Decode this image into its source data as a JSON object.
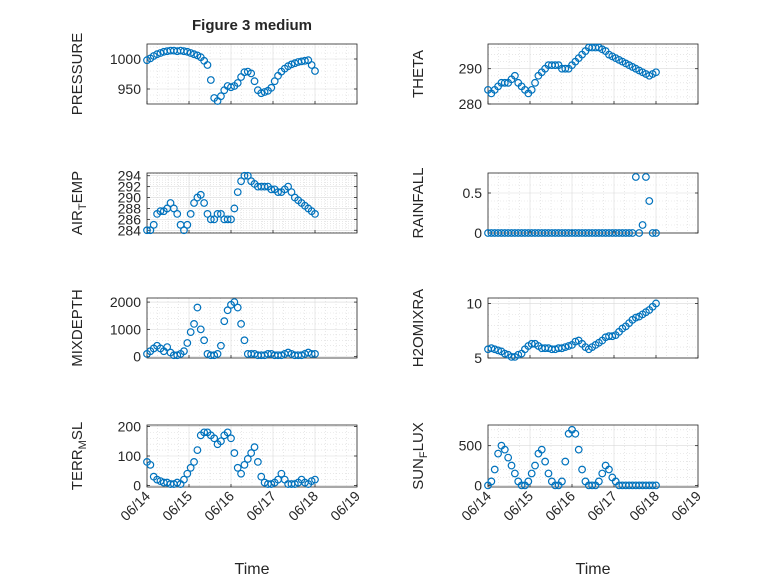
{
  "figure": {
    "title": "Figure 3 medium",
    "xlabel": "Time"
  },
  "colors": {
    "marker": "#0072BD",
    "axis": "#262626",
    "grid": "#d9d9d9",
    "background": "#ffffff"
  },
  "chart_data": [
    {
      "type": "scatter",
      "ylabel": "PRESSURE",
      "xlim": [
        "06/14",
        "06/19"
      ],
      "ylim": [
        925,
        1025
      ],
      "yticks": [
        950,
        1000
      ],
      "x_tick_labels": [],
      "grid": true,
      "marker": "open-circle",
      "series": [
        {
          "name": "",
          "x": [
            14.0,
            14.08,
            14.16,
            14.24,
            14.32,
            14.4,
            14.48,
            14.56,
            14.64,
            14.72,
            14.8,
            14.88,
            14.96,
            15.04,
            15.12,
            15.2,
            15.28,
            15.36,
            15.44,
            15.52,
            15.6,
            15.68,
            15.76,
            15.84,
            15.92,
            16.0,
            16.08,
            16.16,
            16.24,
            16.32,
            16.4,
            16.48,
            16.56,
            16.64,
            16.72,
            16.8,
            16.88,
            16.96,
            17.04,
            17.12,
            17.2,
            17.28,
            17.36,
            17.44,
            17.52,
            17.6,
            17.68,
            17.76,
            17.84,
            17.92,
            18.0
          ],
          "y": [
            998,
            1001,
            1005,
            1008,
            1010,
            1012,
            1013,
            1014,
            1014,
            1013,
            1014,
            1013,
            1012,
            1010,
            1008,
            1006,
            1003,
            997,
            990,
            965,
            935,
            930,
            938,
            948,
            955,
            953,
            955,
            960,
            970,
            978,
            979,
            976,
            963,
            948,
            943,
            945,
            947,
            952,
            963,
            972,
            979,
            984,
            988,
            991,
            993,
            995,
            996,
            997,
            998,
            990,
            980
          ]
        }
      ]
    },
    {
      "type": "scatter",
      "ylabel": "THETA",
      "xlim": [
        "06/14",
        "06/19"
      ],
      "ylim": [
        280,
        297
      ],
      "yticks": [
        280,
        290
      ],
      "x_tick_labels": [],
      "grid": true,
      "marker": "open-circle",
      "series": [
        {
          "name": "",
          "x": [
            14.0,
            14.08,
            14.16,
            14.24,
            14.32,
            14.4,
            14.48,
            14.56,
            14.64,
            14.72,
            14.8,
            14.88,
            14.96,
            15.04,
            15.12,
            15.2,
            15.28,
            15.36,
            15.44,
            15.52,
            15.6,
            15.68,
            15.76,
            15.84,
            15.92,
            16.0,
            16.08,
            16.16,
            16.24,
            16.32,
            16.4,
            16.48,
            16.56,
            16.64,
            16.72,
            16.8,
            16.88,
            16.96,
            17.04,
            17.12,
            17.2,
            17.28,
            17.36,
            17.44,
            17.52,
            17.6,
            17.68,
            17.76,
            17.84,
            17.92,
            18.0
          ],
          "y": [
            284,
            283,
            284,
            285,
            286,
            286,
            286,
            287,
            288,
            286,
            285,
            284,
            283,
            284,
            286,
            288,
            289,
            290,
            291,
            291,
            291,
            291,
            290,
            290,
            290,
            291,
            292,
            293,
            294,
            295,
            296,
            296,
            296,
            296,
            295.5,
            295,
            294,
            293.5,
            293,
            292.5,
            292,
            291.5,
            291,
            290.5,
            290,
            289.5,
            289,
            288.5,
            288,
            288.5,
            289
          ]
        }
      ]
    },
    {
      "type": "scatter",
      "ylabel": "AIR_TEMP",
      "xlim": [
        "06/14",
        "06/19"
      ],
      "ylim": [
        283.5,
        294.5
      ],
      "yticks": [
        284,
        286,
        288,
        290,
        292,
        294
      ],
      "x_tick_labels": [],
      "grid": true,
      "marker": "open-circle",
      "series": [
        {
          "name": "",
          "x": [
            14.0,
            14.08,
            14.16,
            14.24,
            14.32,
            14.4,
            14.48,
            14.56,
            14.64,
            14.72,
            14.8,
            14.88,
            14.96,
            15.04,
            15.12,
            15.2,
            15.28,
            15.36,
            15.44,
            15.52,
            15.6,
            15.68,
            15.76,
            15.84,
            15.92,
            16.0,
            16.08,
            16.16,
            16.24,
            16.32,
            16.4,
            16.48,
            16.56,
            16.64,
            16.72,
            16.8,
            16.88,
            16.96,
            17.04,
            17.12,
            17.2,
            17.28,
            17.36,
            17.44,
            17.52,
            17.6,
            17.68,
            17.76,
            17.84,
            17.92,
            18.0
          ],
          "y": [
            284,
            284,
            285,
            287,
            287.5,
            287.5,
            288,
            289,
            288,
            287,
            285,
            284,
            285,
            287,
            289,
            290,
            290.5,
            289,
            287,
            286,
            286,
            287,
            287,
            286,
            286,
            286,
            288,
            291,
            293,
            294,
            294,
            293,
            292.5,
            292,
            292,
            292,
            292,
            291.5,
            291.5,
            291,
            291,
            291.5,
            292,
            291,
            290,
            289.5,
            289,
            288.5,
            288,
            287.5,
            287
          ]
        }
      ]
    },
    {
      "type": "scatter",
      "ylabel": "RAINFALL",
      "xlim": [
        "06/14",
        "06/19"
      ],
      "ylim": [
        0,
        0.75
      ],
      "yticks": [
        0,
        0.5
      ],
      "x_tick_labels": [],
      "grid": true,
      "marker": "open-circle",
      "series": [
        {
          "name": "",
          "x": [
            14.0,
            14.08,
            14.16,
            14.24,
            14.32,
            14.4,
            14.48,
            14.56,
            14.64,
            14.72,
            14.8,
            14.88,
            14.96,
            15.04,
            15.12,
            15.2,
            15.28,
            15.36,
            15.44,
            15.52,
            15.6,
            15.68,
            15.76,
            15.84,
            15.92,
            16.0,
            16.08,
            16.16,
            16.24,
            16.32,
            16.4,
            16.48,
            16.56,
            16.64,
            16.72,
            16.8,
            16.88,
            16.96,
            17.04,
            17.12,
            17.2,
            17.28,
            17.36,
            17.44,
            17.52,
            17.6,
            17.68,
            17.76,
            17.84,
            17.92,
            18.0
          ],
          "y": [
            0,
            0,
            0,
            0,
            0,
            0,
            0,
            0,
            0,
            0,
            0,
            0,
            0,
            0,
            0,
            0,
            0,
            0,
            0,
            0,
            0,
            0,
            0,
            0,
            0,
            0,
            0,
            0,
            0,
            0,
            0,
            0,
            0,
            0,
            0,
            0,
            0,
            0,
            0,
            0,
            0,
            0,
            0,
            0,
            0.7,
            0,
            0.1,
            0.7,
            0.4,
            0,
            0
          ]
        }
      ]
    },
    {
      "type": "scatter",
      "ylabel": "MIXDEPTH",
      "xlim": [
        "06/14",
        "06/19"
      ],
      "ylim": [
        -50,
        2150
      ],
      "yticks": [
        0,
        1000,
        2000
      ],
      "x_tick_labels": [],
      "grid": true,
      "marker": "open-circle",
      "series": [
        {
          "name": "",
          "x": [
            14.0,
            14.08,
            14.16,
            14.24,
            14.32,
            14.4,
            14.48,
            14.56,
            14.64,
            14.72,
            14.8,
            14.88,
            14.96,
            15.04,
            15.12,
            15.2,
            15.28,
            15.36,
            15.44,
            15.52,
            15.6,
            15.68,
            15.76,
            15.84,
            15.92,
            16.0,
            16.08,
            16.16,
            16.24,
            16.32,
            16.4,
            16.48,
            16.56,
            16.64,
            16.72,
            16.8,
            16.88,
            16.96,
            17.04,
            17.12,
            17.2,
            17.28,
            17.36,
            17.44,
            17.52,
            17.6,
            17.68,
            17.76,
            17.84,
            17.92,
            18.0
          ],
          "y": [
            100,
            200,
            300,
            400,
            300,
            200,
            350,
            150,
            50,
            50,
            100,
            200,
            500,
            900,
            1200,
            1800,
            1000,
            600,
            100,
            50,
            50,
            100,
            400,
            1300,
            1700,
            1900,
            2000,
            1800,
            1200,
            600,
            100,
            100,
            100,
            50,
            50,
            50,
            100,
            100,
            50,
            50,
            50,
            100,
            150,
            100,
            50,
            50,
            50,
            100,
            150,
            100,
            100
          ]
        }
      ]
    },
    {
      "type": "scatter",
      "ylabel": "H2OMIXRA",
      "xlim": [
        "06/14",
        "06/19"
      ],
      "ylim": [
        5,
        10.5
      ],
      "yticks": [
        5,
        10
      ],
      "x_tick_labels": [],
      "grid": true,
      "marker": "open-circle",
      "series": [
        {
          "name": "",
          "x": [
            14.0,
            14.08,
            14.16,
            14.24,
            14.32,
            14.4,
            14.48,
            14.56,
            14.64,
            14.72,
            14.8,
            14.88,
            14.96,
            15.04,
            15.12,
            15.2,
            15.28,
            15.36,
            15.44,
            15.52,
            15.6,
            15.68,
            15.76,
            15.84,
            15.92,
            16.0,
            16.08,
            16.16,
            16.24,
            16.32,
            16.4,
            16.48,
            16.56,
            16.64,
            16.72,
            16.8,
            16.88,
            16.96,
            17.04,
            17.12,
            17.2,
            17.28,
            17.36,
            17.44,
            17.52,
            17.6,
            17.68,
            17.76,
            17.84,
            17.92,
            18.0
          ],
          "y": [
            5.8,
            5.9,
            5.8,
            5.7,
            5.6,
            5.4,
            5.3,
            5.1,
            5.1,
            5.3,
            5.4,
            5.8,
            6.1,
            6.3,
            6.3,
            6.1,
            5.9,
            5.9,
            5.9,
            5.8,
            5.8,
            5.9,
            5.9,
            6.0,
            6.1,
            6.2,
            6.5,
            6.6,
            6.3,
            6.0,
            5.8,
            6.0,
            6.2,
            6.4,
            6.6,
            6.9,
            7.0,
            7.0,
            7.1,
            7.4,
            7.7,
            7.9,
            8.2,
            8.5,
            8.7,
            8.8,
            9.0,
            9.2,
            9.4,
            9.7,
            10.0
          ]
        }
      ]
    },
    {
      "type": "scatter",
      "ylabel": "TERR_MSL",
      "xlim": [
        "06/14",
        "06/19"
      ],
      "ylim": [
        -5,
        205
      ],
      "yticks": [
        0,
        100,
        200
      ],
      "x_tick_labels": [
        "06/14",
        "06/15",
        "06/16",
        "06/17",
        "06/18",
        "06/19"
      ],
      "grid": true,
      "marker": "open-circle",
      "series": [
        {
          "name": "",
          "x": [
            14.0,
            14.08,
            14.16,
            14.24,
            14.32,
            14.4,
            14.48,
            14.56,
            14.64,
            14.72,
            14.8,
            14.88,
            14.96,
            15.04,
            15.12,
            15.2,
            15.28,
            15.36,
            15.44,
            15.52,
            15.6,
            15.68,
            15.76,
            15.84,
            15.92,
            16.0,
            16.08,
            16.16,
            16.24,
            16.32,
            16.4,
            16.48,
            16.56,
            16.64,
            16.72,
            16.8,
            16.88,
            16.96,
            17.04,
            17.12,
            17.2,
            17.28,
            17.36,
            17.44,
            17.52,
            17.6,
            17.68,
            17.76,
            17.84,
            17.92,
            18.0
          ],
          "y": [
            80,
            70,
            30,
            20,
            15,
            10,
            10,
            5,
            5,
            10,
            5,
            20,
            40,
            60,
            80,
            120,
            170,
            180,
            180,
            170,
            160,
            140,
            150,
            170,
            180,
            160,
            110,
            60,
            40,
            70,
            90,
            110,
            130,
            80,
            30,
            10,
            5,
            5,
            10,
            20,
            40,
            20,
            5,
            5,
            5,
            10,
            20,
            10,
            5,
            15,
            20
          ]
        }
      ]
    },
    {
      "type": "scatter",
      "ylabel": "SUN_FLUX",
      "xlim": [
        "06/14",
        "06/19"
      ],
      "ylim": [
        -20,
        760
      ],
      "yticks": [
        0,
        500
      ],
      "x_tick_labels": [
        "06/14",
        "06/15",
        "06/16",
        "06/17",
        "06/18",
        "06/19"
      ],
      "grid": true,
      "marker": "open-circle",
      "series": [
        {
          "name": "",
          "x": [
            14.0,
            14.08,
            14.16,
            14.24,
            14.32,
            14.4,
            14.48,
            14.56,
            14.64,
            14.72,
            14.8,
            14.88,
            14.96,
            15.04,
            15.12,
            15.2,
            15.28,
            15.36,
            15.44,
            15.52,
            15.6,
            15.68,
            15.76,
            15.84,
            15.92,
            16.0,
            16.08,
            16.16,
            16.24,
            16.32,
            16.4,
            16.48,
            16.56,
            16.64,
            16.72,
            16.8,
            16.88,
            16.96,
            17.04,
            17.12,
            17.2,
            17.28,
            17.36,
            17.44,
            17.52,
            17.6,
            17.68,
            17.76,
            17.84,
            17.92,
            18.0
          ],
          "y": [
            0,
            50,
            200,
            400,
            500,
            450,
            350,
            250,
            150,
            50,
            0,
            0,
            50,
            150,
            250,
            400,
            450,
            300,
            150,
            50,
            0,
            0,
            50,
            300,
            650,
            700,
            650,
            450,
            200,
            50,
            0,
            0,
            0,
            50,
            150,
            250,
            200,
            100,
            50,
            0,
            0,
            0,
            0,
            0,
            0,
            0,
            0,
            0,
            0,
            0,
            0
          ]
        }
      ]
    }
  ]
}
